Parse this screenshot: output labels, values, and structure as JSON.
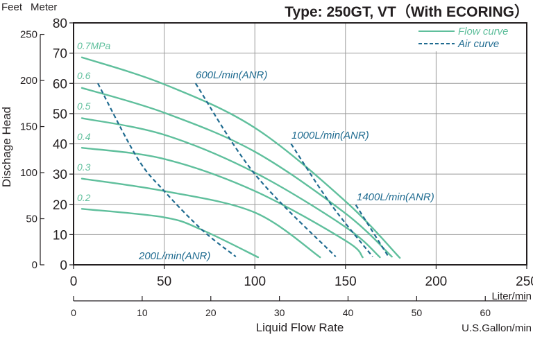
{
  "chart_data": {
    "type": "line",
    "title": "Type: 250GT, VT（With ECORING）",
    "xlabel": "Liquid Flow Rate",
    "x_unit_primary": "Liter/min",
    "x_unit_secondary": "U.S.Gallon/min",
    "ylabel": "Dischage Head",
    "y_unit_left_outer": "Feet",
    "y_unit_left_inner": "Meter",
    "xlim": [
      0,
      250
    ],
    "ylim": [
      0,
      80
    ],
    "x_ticks": [
      0,
      50,
      100,
      150,
      200,
      250
    ],
    "y_ticks": [
      0,
      10,
      20,
      30,
      40,
      50,
      60,
      70,
      80
    ],
    "feet_ticks": [
      0,
      50,
      100,
      150,
      200,
      250
    ],
    "gallon_ticks": [
      0,
      10,
      20,
      30,
      40,
      50,
      60
    ],
    "grid": true,
    "legend": {
      "placement": "top-right",
      "entries": [
        {
          "label": "Flow curve",
          "style": "solid"
        },
        {
          "label": "Air curve",
          "style": "dashed"
        }
      ]
    },
    "colors": {
      "flow": "#5fbf9c",
      "air": "#1f6b90",
      "axis": "#231f20",
      "grid": "#9a9a9a"
    },
    "flow_curves": [
      {
        "name": "0.7MPa",
        "points": [
          [
            4.6,
            68.6
          ],
          [
            50,
            59.7
          ],
          [
            100,
            45.3
          ],
          [
            150,
            21
          ],
          [
            180,
            2.3
          ]
        ]
      },
      {
        "name": "0.6",
        "points": [
          [
            4.6,
            58.5
          ],
          [
            50,
            50.3
          ],
          [
            100,
            37.4
          ],
          [
            150,
            17
          ],
          [
            175.6,
            2.7
          ]
        ]
      },
      {
        "name": "0.5",
        "points": [
          [
            4.6,
            48.5
          ],
          [
            50,
            43
          ],
          [
            100,
            30.5
          ],
          [
            150,
            12.5
          ],
          [
            169,
            2.5
          ]
        ]
      },
      {
        "name": "0.4",
        "points": [
          [
            4.6,
            38.7
          ],
          [
            50,
            35
          ],
          [
            100,
            24.4
          ],
          [
            150,
            8
          ],
          [
            159.5,
            2.5
          ]
        ]
      },
      {
        "name": "0.3",
        "points": [
          [
            4.6,
            28.5
          ],
          [
            50,
            24.4
          ],
          [
            100,
            17.3
          ],
          [
            136,
            2.5
          ]
        ]
      },
      {
        "name": "0.2",
        "points": [
          [
            4.6,
            18.5
          ],
          [
            50,
            15.7
          ],
          [
            71,
            11.5
          ],
          [
            101.8,
            2.5
          ]
        ]
      }
    ],
    "air_curves": [
      {
        "name": "200L/min(ANR)",
        "points": [
          [
            13.4,
            60
          ],
          [
            35,
            35.5
          ],
          [
            50,
            24.4
          ],
          [
            71,
            11.5
          ],
          [
            89.5,
            2.7
          ]
        ]
      },
      {
        "name": "600L/min(ANR)",
        "points": [
          [
            67.3,
            60
          ],
          [
            100,
            30
          ],
          [
            144.6,
            2.7
          ]
        ]
      },
      {
        "name": "1000L/min(ANR)",
        "points": [
          [
            120,
            40
          ],
          [
            142,
            20
          ],
          [
            165,
            2.7
          ]
        ]
      },
      {
        "name": "1400L/min(ANR)",
        "points": [
          [
            155.7,
            19.8
          ],
          [
            173.7,
            2.7
          ]
        ]
      }
    ]
  }
}
